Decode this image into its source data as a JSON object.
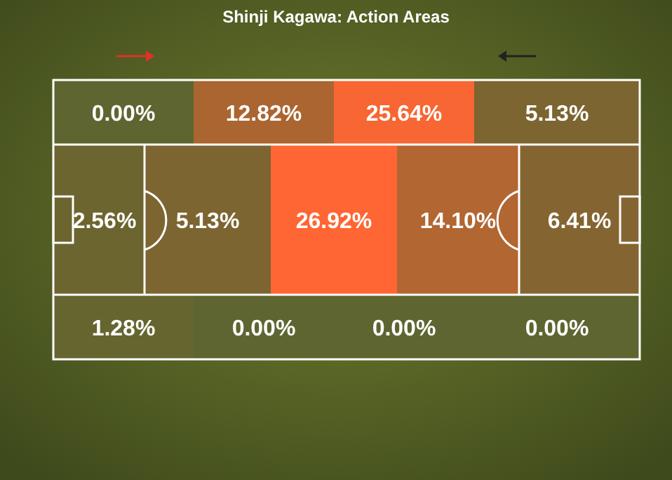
{
  "chart_data": {
    "type": "other",
    "title": "Shinji Kagawa: Action Areas",
    "values": [
      0.0,
      12.82,
      25.64,
      5.13,
      2.56,
      5.13,
      26.92,
      14.1,
      6.41,
      1.28,
      0.0,
      0.0,
      0.0
    ],
    "value_labels": [
      "0.00%",
      "12.82%",
      "25.64%",
      "5.13%",
      "2.56%",
      "5.13%",
      "26.92%",
      "14.10%",
      "6.41%",
      "1.28%",
      "0.00%",
      "0.00%",
      "0.00%"
    ]
  }
}
